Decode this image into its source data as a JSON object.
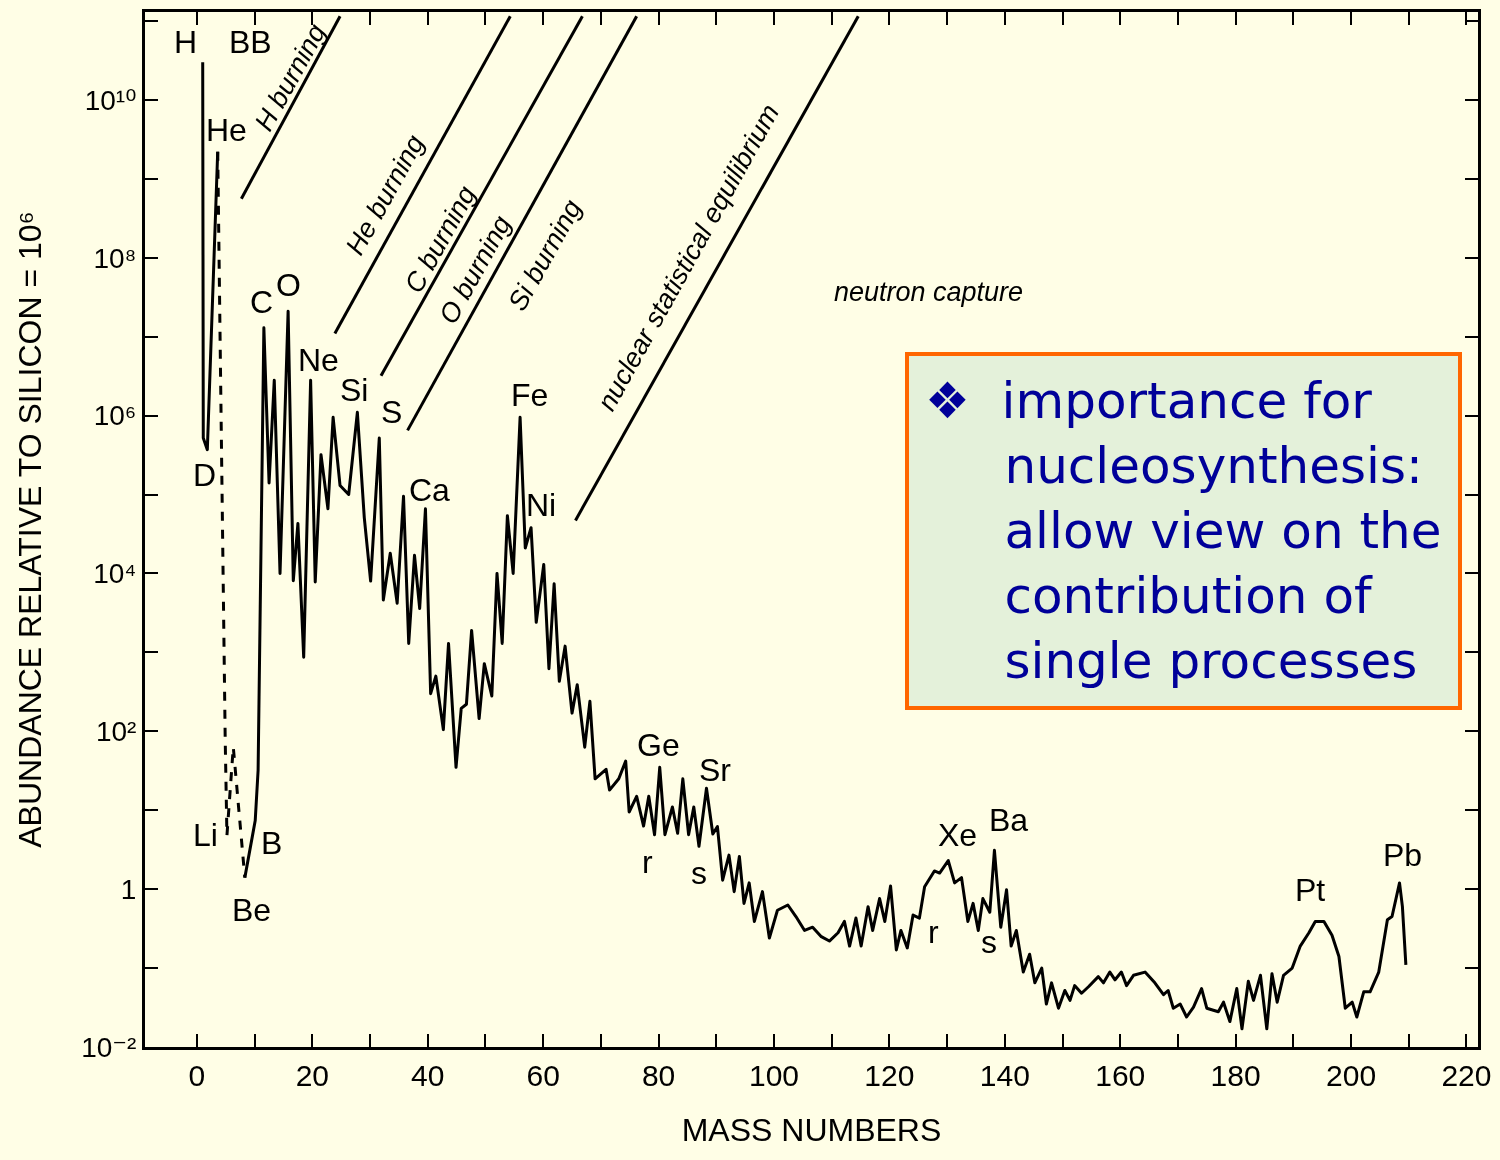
{
  "chart_data": {
    "type": "line",
    "xlabel": "MASS NUMBERS",
    "ylabel": "ABUNDANCE RELATIVE TO SILICON = 10⁶",
    "log": true,
    "grid": false,
    "marker": "none",
    "xlim": [
      -9,
      222
    ],
    "xticks": [
      0,
      {
        "value": 10,
        "label": null
      },
      20,
      {
        "value": 30,
        "label": null
      },
      40,
      {
        "value": 50,
        "label": null
      },
      60,
      {
        "value": 70,
        "label": null
      },
      80,
      {
        "value": 90,
        "label": null
      },
      100,
      {
        "value": 110,
        "label": null
      },
      120,
      {
        "value": 130,
        "label": null
      },
      140,
      {
        "value": 150,
        "label": null
      },
      160,
      {
        "value": 170,
        "label": null
      },
      180,
      {
        "value": 190,
        "label": null
      },
      200,
      {
        "value": 210,
        "label": null
      },
      220
    ],
    "ylim": [
      0.01,
      130000000000.0
    ],
    "yticks": [
      {
        "value": 0.01,
        "label": "10⁻²"
      },
      {
        "value": 0.1,
        "label": null
      },
      1,
      {
        "value": 10,
        "label": null
      },
      {
        "value": 100,
        "label": "10²"
      },
      {
        "value": 1000,
        "label": null
      },
      {
        "value": 10000,
        "label": "10⁴"
      },
      {
        "value": 100000,
        "label": null
      },
      {
        "value": 1000000,
        "label": "10⁶"
      },
      {
        "value": 10000000,
        "label": null
      },
      {
        "value": 100000000,
        "label": "10⁸"
      },
      {
        "value": 1000000000,
        "label": null
      },
      {
        "value": 10000000000,
        "label": "10¹⁰"
      },
      {
        "value": 100000000000,
        "label": null
      }
    ],
    "series": [
      {
        "color": "#000000",
        "line_style": "solid",
        "x": [
          1,
          1.1,
          1.8,
          3.6
        ],
        "values": [
          30000000000.0,
          520000.0,
          370000.0,
          2200000000.0
        ]
      },
      {
        "color": "#000000",
        "line_style": "dashed",
        "x": [
          3.6,
          4.9,
          5.2,
          6.3,
          8.3
        ],
        "values": [
          2200000000.0,
          78,
          4.8,
          63,
          1.4
        ]
      },
      {
        "color": "#000000",
        "line_style": "solid",
        "x": [
          8.3,
          10.1,
          10.6,
          11.6,
          12.5,
          13.4,
          14.4,
          15.8,
          16.7,
          17.5,
          18.5,
          19.7,
          20.5,
          21.5,
          22.7,
          23.6,
          24.8,
          26.3,
          27.8,
          29.0,
          30.1,
          31.6,
          32.3,
          33.5,
          34.7,
          35.8,
          36.7,
          37.7,
          38.6,
          39.6,
          40.5,
          41.4,
          42.7,
          43.6,
          44.9,
          45.8,
          46.7,
          47.6,
          48.9,
          49.8,
          51.1,
          52.0,
          52.9,
          53.8,
          54.8,
          56.0,
          56.9,
          57.9,
          58.8,
          60.1,
          61.0,
          61.9,
          62.8,
          63.8,
          65.0,
          65.9,
          67.2,
          68.1,
          69.0,
          70.9,
          71.5,
          73.1,
          74.3,
          74.9,
          76.2,
          77.4,
          78.3,
          79.3,
          80.2,
          81.1,
          82.4,
          83.3,
          84.2,
          85.2,
          86.1,
          87.0,
          88.3,
          89.4,
          90.2,
          91.1,
          92.2,
          93.1,
          94.0,
          94.8,
          95.7,
          96.6,
          98.0,
          99.2,
          100.6,
          102.4,
          103.8,
          105.3,
          106.7,
          108.2,
          109.6,
          111.1,
          112.2,
          113.1,
          114.2,
          115.1,
          116.3,
          117.1,
          118.3,
          119.2,
          120.2,
          121.2,
          122.0,
          123.1,
          124.1,
          125.2,
          126.1,
          127.8,
          128.7,
          130.2,
          131.3,
          132.5,
          133.6,
          134.5,
          135.4,
          136.2,
          137.4,
          138.2,
          139.3,
          140.3,
          141.1,
          142.0,
          143.2,
          144.3,
          145.2,
          146.4,
          147.2,
          148.1,
          149.3,
          150.4,
          151.3,
          152.1,
          153.3,
          154.5,
          156.2,
          157.1,
          158.2,
          159.1,
          160.2,
          161.1,
          162.3,
          164.3,
          166.0,
          167.5,
          168.3,
          169.2,
          170.4,
          171.5,
          172.7,
          174.1,
          175.0,
          177.0,
          177.9,
          179.0,
          180.2,
          181.1,
          182.2,
          183.1,
          184.3,
          185.4,
          186.3,
          187.2,
          188.3,
          189.8,
          191.2,
          192.7,
          193.8,
          195.3,
          196.7,
          197.9,
          199.0,
          200.2,
          201.0,
          202.2,
          203.3,
          204.8,
          206.3,
          207.1,
          208.4,
          208.9,
          209.5
        ],
        "values": [
          1.4,
          7.4,
          32,
          13000000.0,
          140000.0,
          2800000.0,
          10000.0,
          21000000.0,
          8100.0,
          43000.0,
          870,
          2800000.0,
          7800.0,
          320000.0,
          66000.0,
          950000.0,
          130000.0,
          100000.0,
          1100000.0,
          51000.0,
          8000.0,
          520000.0,
          4600.0,
          18000.0,
          4200.0,
          95000.0,
          1300.0,
          17000.0,
          3600.0,
          66000.0,
          300,
          500,
          105,
          1300.0,
          35,
          195,
          220,
          1900.0,
          145,
          720,
          280,
          10000.0,
          1300.0,
          54000.0,
          10000.0,
          950000.0,
          21000.0,
          38000.0,
          2400.0,
          13000.0,
          620,
          7400.0,
          430,
          1200.0,
          170,
          390,
          63,
          240,
          25,
          33,
          18,
          25,
          42,
          9.5,
          15,
          6.3,
          15,
          4.9,
          35,
          4.9,
          11,
          5.1,
          25,
          4.9,
          11,
          3.5,
          19,
          5.0,
          6.2,
          1.3,
          2.7,
          0.93,
          2.6,
          0.66,
          1.2,
          0.39,
          0.93,
          0.24,
          0.54,
          0.63,
          0.45,
          0.3,
          0.33,
          0.25,
          0.22,
          0.28,
          0.39,
          0.19,
          0.43,
          0.19,
          0.6,
          0.3,
          0.76,
          0.39,
          1.1,
          0.17,
          0.3,
          0.18,
          0.47,
          0.43,
          1.07,
          1.7,
          1.6,
          2.3,
          1.2,
          1.4,
          0.39,
          0.66,
          0.3,
          0.76,
          0.51,
          3.1,
          0.33,
          0.98,
          0.19,
          0.3,
          0.089,
          0.15,
          0.065,
          0.1,
          0.035,
          0.065,
          0.031,
          0.052,
          0.039,
          0.06,
          0.048,
          0.058,
          0.078,
          0.065,
          0.089,
          0.071,
          0.089,
          0.06,
          0.081,
          0.089,
          0.065,
          0.046,
          0.052,
          0.031,
          0.035,
          0.024,
          0.032,
          0.055,
          0.031,
          0.028,
          0.037,
          0.021,
          0.055,
          0.017,
          0.068,
          0.039,
          0.081,
          0.017,
          0.085,
          0.037,
          0.081,
          0.1,
          0.19,
          0.28,
          0.39,
          0.39,
          0.26,
          0.14,
          0.031,
          0.037,
          0.024,
          0.05,
          0.05,
          0.089,
          0.41,
          0.45,
          1.2,
          0.6,
          0.11
        ]
      },
      {
        "color": "#000000",
        "line_style": "solid",
        "x": [
          7.7,
          24.8
        ],
        "values": [
          560000000.0,
          115000000000.0
        ]
      },
      {
        "color": "#000000",
        "line_style": "solid",
        "x": [
          23.9,
          54.3
        ],
        "values": [
          11000000.0,
          115000000000.0
        ]
      },
      {
        "color": "#000000",
        "line_style": "solid",
        "x": [
          31.9,
          66.8
        ],
        "values": [
          3200000.0,
          115000000000.0
        ]
      },
      {
        "color": "#000000",
        "line_style": "solid",
        "x": [
          36.5,
          76.2
        ],
        "values": [
          650000.0,
          115000000000.0
        ]
      },
      {
        "color": "#000000",
        "line_style": "solid",
        "x": [
          65.6,
          114.6
        ],
        "values": [
          47000.0,
          115000000000.0
        ]
      }
    ],
    "annotations": [
      "H",
      "BB",
      "He",
      "H burning",
      "D",
      "Li",
      "Be",
      "B",
      "C",
      "O",
      "Ne",
      "Si",
      "S",
      "Ca",
      "He burning",
      "C burning",
      "O burning",
      "Si burning",
      "nuclear statistical equilibrium",
      "Fe",
      "Ni",
      "neutron capture",
      "Ge",
      "Sr",
      "r",
      "s",
      "Xe",
      "Ba",
      "r",
      "s",
      "Pt",
      "Pb",
      "❖ importance for nucleosynthesis: allow view on the contribution of single processes"
    ]
  }
}
